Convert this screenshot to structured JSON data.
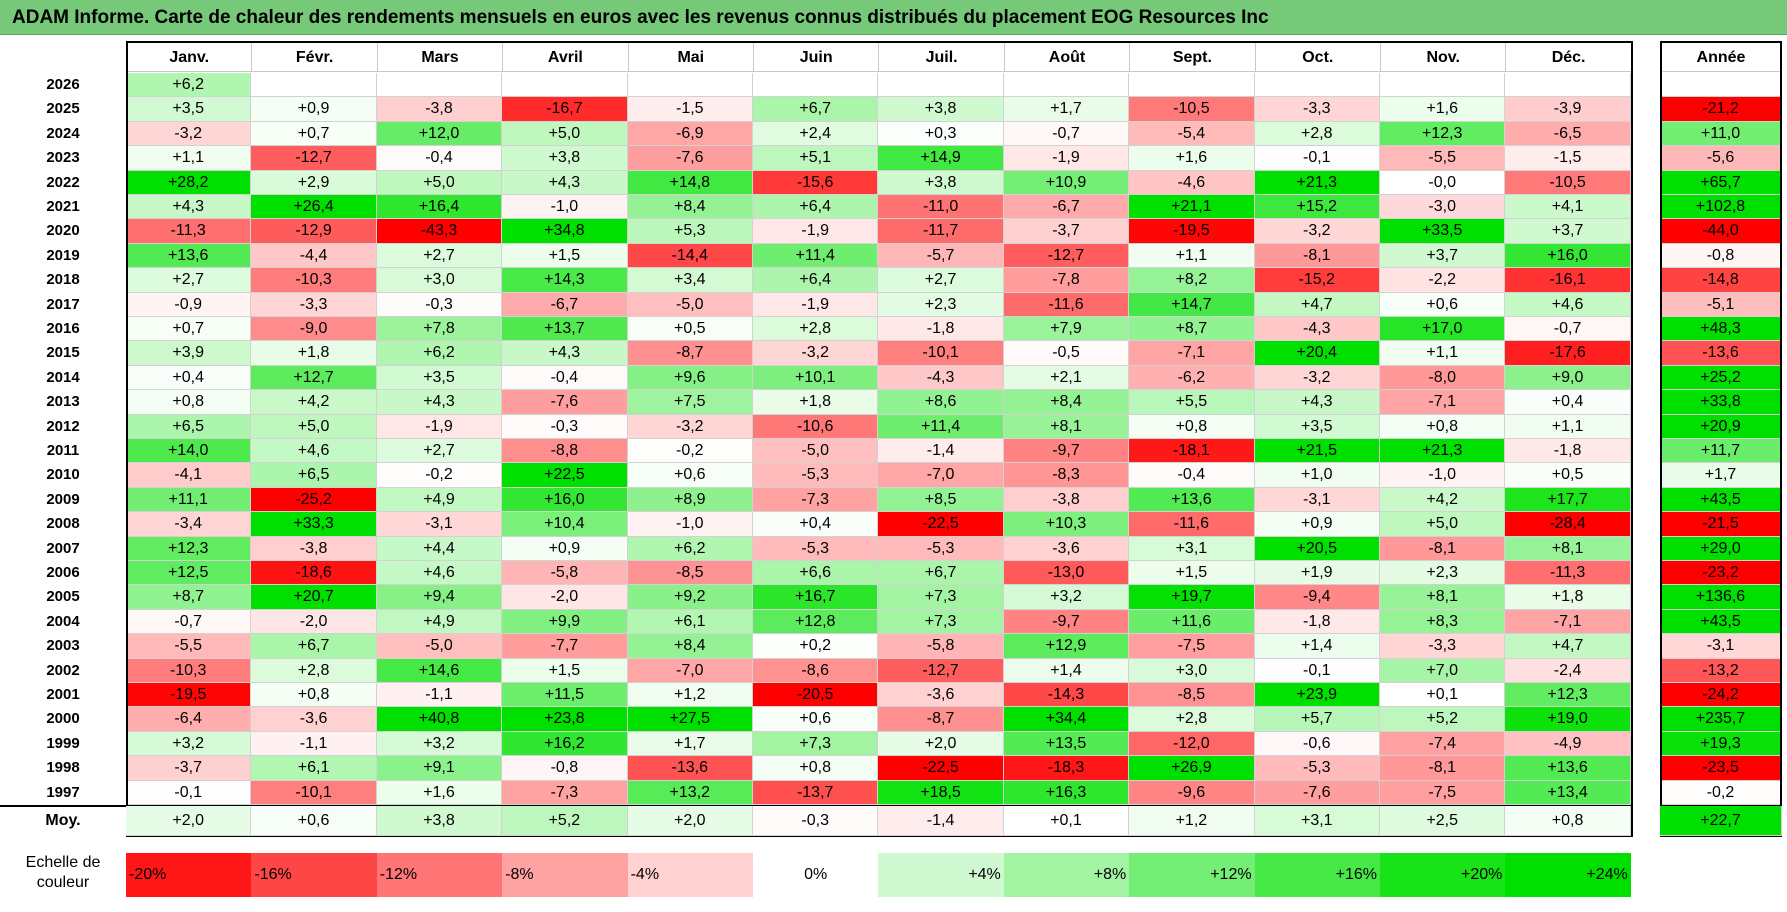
{
  "title": "ADAM Informe. Carte de chaleur des rendements mensuels en euros avec les revenus connus distribués du placement EOG Resources Inc",
  "chart_data": {
    "type": "heatmap",
    "title": "ADAM Informe. Carte de chaleur des rendements mensuels en euros avec les revenus connus distribués du placement EOG Resources Inc",
    "columns": [
      "Janv.",
      "Févr.",
      "Mars",
      "Avril",
      "Mai",
      "Juin",
      "Juil.",
      "Août",
      "Sept.",
      "Oct.",
      "Nov.",
      "Déc."
    ],
    "year_column": "Année",
    "rows": [
      {
        "year": "2026",
        "values": [
          6.2,
          null,
          null,
          null,
          null,
          null,
          null,
          null,
          null,
          null,
          null,
          null
        ],
        "annual": null
      },
      {
        "year": "2025",
        "values": [
          3.5,
          0.9,
          -3.8,
          -16.7,
          -1.5,
          6.7,
          3.8,
          1.7,
          -10.5,
          -3.3,
          1.6,
          -3.9
        ],
        "annual": -21.2
      },
      {
        "year": "2024",
        "values": [
          -3.2,
          0.7,
          12.0,
          5.0,
          -6.9,
          2.4,
          0.3,
          -0.7,
          -5.4,
          2.8,
          12.3,
          -6.5
        ],
        "annual": 11.0
      },
      {
        "year": "2023",
        "values": [
          1.1,
          -12.7,
          -0.4,
          3.8,
          -7.6,
          5.1,
          14.9,
          -1.9,
          1.6,
          -0.1,
          -5.5,
          -1.5
        ],
        "annual": -5.6
      },
      {
        "year": "2022",
        "values": [
          28.2,
          2.9,
          5.0,
          4.3,
          14.8,
          -15.6,
          3.8,
          10.9,
          -4.6,
          21.3,
          -0.0,
          -10.5
        ],
        "annual": 65.7
      },
      {
        "year": "2021",
        "values": [
          4.3,
          26.4,
          16.4,
          -1.0,
          8.4,
          6.4,
          -11.0,
          -6.7,
          21.1,
          15.2,
          -3.0,
          4.1
        ],
        "annual": 102.8
      },
      {
        "year": "2020",
        "values": [
          -11.3,
          -12.9,
          -43.3,
          34.8,
          5.3,
          -1.9,
          -11.7,
          -3.7,
          -19.5,
          -3.2,
          33.5,
          3.7
        ],
        "annual": -44.0
      },
      {
        "year": "2019",
        "values": [
          13.6,
          -4.4,
          2.7,
          1.5,
          -14.4,
          11.4,
          -5.7,
          -12.7,
          1.1,
          -8.1,
          3.7,
          16.0
        ],
        "annual": -0.8
      },
      {
        "year": "2018",
        "values": [
          2.7,
          -10.3,
          3.0,
          14.3,
          3.4,
          6.4,
          2.7,
          -7.8,
          8.2,
          -15.2,
          -2.2,
          -16.1
        ],
        "annual": -14.8
      },
      {
        "year": "2017",
        "values": [
          -0.9,
          -3.3,
          -0.3,
          -6.7,
          -5.0,
          -1.9,
          2.3,
          -11.6,
          14.7,
          4.7,
          0.6,
          4.6
        ],
        "annual": -5.1
      },
      {
        "year": "2016",
        "values": [
          0.7,
          -9.0,
          7.8,
          13.7,
          0.5,
          2.8,
          -1.8,
          7.9,
          8.7,
          -4.3,
          17.0,
          -0.7
        ],
        "annual": 48.3
      },
      {
        "year": "2015",
        "values": [
          3.9,
          1.8,
          6.2,
          4.3,
          -8.7,
          -3.2,
          -10.1,
          -0.5,
          -7.1,
          20.4,
          1.1,
          -17.6
        ],
        "annual": -13.6
      },
      {
        "year": "2014",
        "values": [
          0.4,
          12.7,
          3.5,
          -0.4,
          9.6,
          10.1,
          -4.3,
          2.1,
          -6.2,
          -3.2,
          -8.0,
          9.0
        ],
        "annual": 25.2
      },
      {
        "year": "2013",
        "values": [
          0.8,
          4.2,
          4.3,
          -7.6,
          7.5,
          1.8,
          8.6,
          8.4,
          5.5,
          4.3,
          -7.1,
          0.4
        ],
        "annual": 33.8
      },
      {
        "year": "2012",
        "values": [
          6.5,
          5.0,
          -1.9,
          -0.3,
          -3.2,
          -10.6,
          11.4,
          8.1,
          0.8,
          3.5,
          0.8,
          1.1
        ],
        "annual": 20.9
      },
      {
        "year": "2011",
        "values": [
          14.0,
          4.6,
          2.7,
          -8.8,
          -0.2,
          -5.0,
          -1.4,
          -9.7,
          -18.1,
          21.5,
          21.3,
          -1.8
        ],
        "annual": 11.7
      },
      {
        "year": "2010",
        "values": [
          -4.1,
          6.5,
          -0.2,
          22.5,
          0.6,
          -5.3,
          -7.0,
          -8.3,
          -0.4,
          1.0,
          -1.0,
          0.5
        ],
        "annual": 1.7
      },
      {
        "year": "2009",
        "values": [
          11.1,
          -25.2,
          4.9,
          16.0,
          8.9,
          -7.3,
          8.5,
          -3.8,
          13.6,
          -3.1,
          4.2,
          17.7
        ],
        "annual": 43.5
      },
      {
        "year": "2008",
        "values": [
          -3.4,
          33.3,
          -3.1,
          10.4,
          -1.0,
          0.4,
          -22.5,
          10.3,
          -11.6,
          0.9,
          5.0,
          -28.4
        ],
        "annual": -21.5
      },
      {
        "year": "2007",
        "values": [
          12.3,
          -3.8,
          4.4,
          0.9,
          6.2,
          -5.3,
          -5.3,
          -3.6,
          3.1,
          20.5,
          -8.1,
          8.1
        ],
        "annual": 29.0
      },
      {
        "year": "2006",
        "values": [
          12.5,
          -18.6,
          4.6,
          -5.8,
          -8.5,
          6.6,
          6.7,
          -13.0,
          1.5,
          1.9,
          2.3,
          -11.3
        ],
        "annual": -23.2
      },
      {
        "year": "2005",
        "values": [
          8.7,
          20.7,
          9.4,
          -2.0,
          9.2,
          16.7,
          7.3,
          3.2,
          19.7,
          -9.4,
          8.1,
          1.8
        ],
        "annual": 136.6
      },
      {
        "year": "2004",
        "values": [
          -0.7,
          -2.0,
          4.9,
          9.9,
          6.1,
          12.8,
          7.3,
          -9.7,
          11.6,
          -1.8,
          8.3,
          -7.1
        ],
        "annual": 43.5
      },
      {
        "year": "2003",
        "values": [
          -5.5,
          6.7,
          -5.0,
          -7.7,
          8.4,
          0.2,
          -5.8,
          12.9,
          -7.5,
          1.4,
          -3.3,
          4.7
        ],
        "annual": -3.1
      },
      {
        "year": "2002",
        "values": [
          -10.3,
          2.8,
          14.6,
          1.5,
          -7.0,
          -8.6,
          -12.7,
          1.4,
          3.0,
          -0.1,
          7.0,
          -2.4
        ],
        "annual": -13.2
      },
      {
        "year": "2001",
        "values": [
          -19.5,
          0.8,
          -1.1,
          11.5,
          1.2,
          -20.5,
          -3.6,
          -14.3,
          -8.5,
          23.9,
          0.1,
          12.3
        ],
        "annual": -24.2
      },
      {
        "year": "2000",
        "values": [
          -6.4,
          -3.6,
          40.8,
          23.8,
          27.5,
          0.6,
          -8.7,
          34.4,
          2.8,
          5.7,
          5.2,
          19.0
        ],
        "annual": 235.7
      },
      {
        "year": "1999",
        "values": [
          3.2,
          -1.1,
          3.2,
          16.2,
          1.7,
          7.3,
          2.0,
          13.5,
          -12.0,
          -0.6,
          -7.4,
          -4.9
        ],
        "annual": 19.3
      },
      {
        "year": "1998",
        "values": [
          -3.7,
          6.1,
          9.1,
          -0.8,
          -13.6,
          0.8,
          -22.5,
          -18.3,
          26.9,
          -5.3,
          -8.1,
          13.6
        ],
        "annual": -23.5
      },
      {
        "year": "1997",
        "values": [
          -0.1,
          -10.1,
          1.6,
          -7.3,
          13.2,
          -13.7,
          18.5,
          16.3,
          -9.6,
          -7.6,
          -7.5,
          13.4
        ],
        "annual": -0.2
      }
    ],
    "average_label": "Moy.",
    "averages": [
      2.0,
      0.6,
      3.8,
      5.2,
      2.0,
      -0.3,
      -1.4,
      0.1,
      1.2,
      3.1,
      2.5,
      0.8
    ],
    "average_annual": 22.7,
    "scale_label": "Echelle de couleur",
    "scale": [
      "-20%",
      "-16%",
      "-12%",
      "-8%",
      "-4%",
      "0%",
      "+4%",
      "+8%",
      "+12%",
      "+16%",
      "+20%",
      "+24%"
    ],
    "scale_values": [
      -20,
      -16,
      -12,
      -8,
      -4,
      0,
      4,
      8,
      12,
      16,
      20,
      24
    ],
    "colors": {
      "negative": "#ff0000",
      "neutral": "#ffffff",
      "positive": "#00e000"
    }
  }
}
